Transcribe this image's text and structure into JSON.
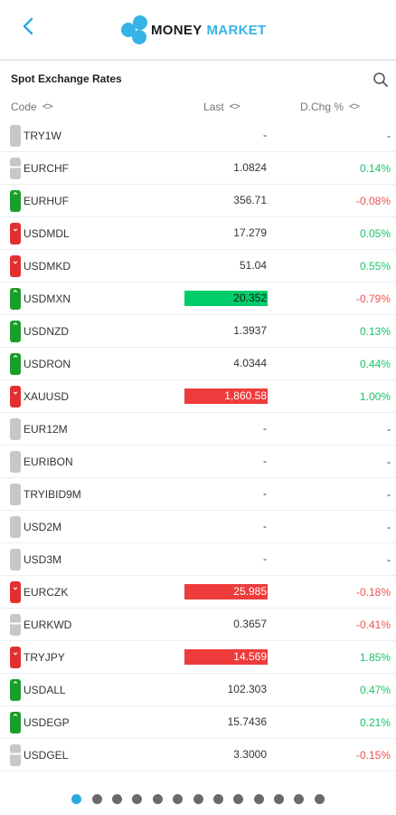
{
  "header": {
    "back_icon": "chevron-left-icon",
    "brand_part1": "MONEY",
    "brand_part2": "MARKET",
    "brand_color": "#36b3e6"
  },
  "section": {
    "title": "Spot Exchange Rates",
    "search_icon": "search-icon"
  },
  "columns": {
    "code": "Code",
    "last": "Last",
    "change": "D.Chg %",
    "sort_icon": "<>"
  },
  "rows": [
    {
      "code": "TRY1W",
      "last": "-",
      "change": "-",
      "indicator": "neutral",
      "last_flash": "none",
      "change_dir": "none"
    },
    {
      "code": "EURCHF",
      "last": "1.0824",
      "change": "0.14%",
      "indicator": "neutral-split",
      "last_flash": "none",
      "change_dir": "pos"
    },
    {
      "code": "EURHUF",
      "last": "356.71",
      "change": "-0.08%",
      "indicator": "up",
      "last_flash": "none",
      "change_dir": "neg"
    },
    {
      "code": "USDMDL",
      "last": "17.279",
      "change": "0.05%",
      "indicator": "down",
      "last_flash": "none",
      "change_dir": "pos"
    },
    {
      "code": "USDMKD",
      "last": "51.04",
      "change": "0.55%",
      "indicator": "down",
      "last_flash": "none",
      "change_dir": "pos"
    },
    {
      "code": "USDMXN",
      "last": "20.352",
      "change": "-0.79%",
      "indicator": "up",
      "last_flash": "up",
      "change_dir": "neg"
    },
    {
      "code": "USDNZD",
      "last": "1.3937",
      "change": "0.13%",
      "indicator": "up",
      "last_flash": "none",
      "change_dir": "pos"
    },
    {
      "code": "USDRON",
      "last": "4.0344",
      "change": "0.44%",
      "indicator": "up",
      "last_flash": "none",
      "change_dir": "pos"
    },
    {
      "code": "XAUUSD",
      "last": "1,860.58",
      "change": "1.00%",
      "indicator": "down",
      "last_flash": "down",
      "change_dir": "pos"
    },
    {
      "code": "EUR12M",
      "last": "-",
      "change": "-",
      "indicator": "neutral",
      "last_flash": "none",
      "change_dir": "none"
    },
    {
      "code": "EURIBON",
      "last": "-",
      "change": "-",
      "indicator": "neutral",
      "last_flash": "none",
      "change_dir": "none"
    },
    {
      "code": "TRYIBID9M",
      "last": "-",
      "change": "-",
      "indicator": "neutral",
      "last_flash": "none",
      "change_dir": "none"
    },
    {
      "code": "USD2M",
      "last": "-",
      "change": "-",
      "indicator": "neutral",
      "last_flash": "none",
      "change_dir": "none"
    },
    {
      "code": "USD3M",
      "last": "-",
      "change": "-",
      "indicator": "neutral",
      "last_flash": "none",
      "change_dir": "none"
    },
    {
      "code": "EURCZK",
      "last": "25.985",
      "change": "-0.18%",
      "indicator": "down",
      "last_flash": "down",
      "change_dir": "neg"
    },
    {
      "code": "EURKWD",
      "last": "0.3657",
      "change": "-0.41%",
      "indicator": "neutral-split",
      "last_flash": "none",
      "change_dir": "neg"
    },
    {
      "code": "TRYJPY",
      "last": "14.569",
      "change": "1.85%",
      "indicator": "down",
      "last_flash": "down",
      "change_dir": "pos"
    },
    {
      "code": "USDALL",
      "last": "102.303",
      "change": "0.47%",
      "indicator": "up",
      "last_flash": "none",
      "change_dir": "pos"
    },
    {
      "code": "USDEGP",
      "last": "15.7436",
      "change": "0.21%",
      "indicator": "up",
      "last_flash": "none",
      "change_dir": "pos"
    },
    {
      "code": "USDGEL",
      "last": "3.3000",
      "change": "-0.15%",
      "indicator": "neutral-split",
      "last_flash": "none",
      "change_dir": "neg"
    }
  ],
  "pager": {
    "pages": 13,
    "active": 0
  },
  "colors": {
    "positive": "#19c36a",
    "negative": "#f0524f",
    "flash_up": "#00cc6a",
    "flash_down": "#ee3b3b",
    "indicator_up": "#1a9e2a",
    "indicator_down": "#e23030",
    "indicator_neutral": "#c7c7c7",
    "pager_active": "#2aa9e0"
  }
}
